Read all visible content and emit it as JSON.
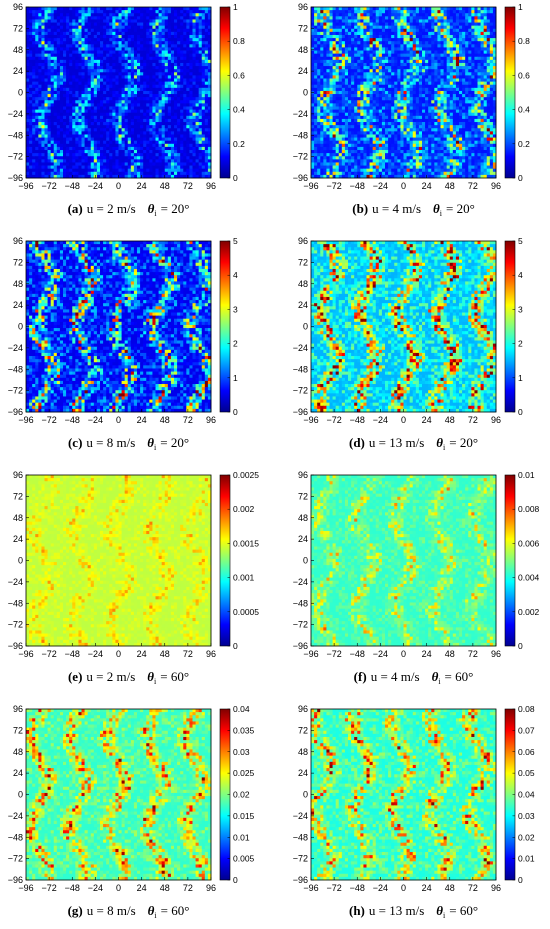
{
  "colors": {
    "colormap": [
      "#00008f",
      "#0000ff",
      "#0080ff",
      "#00ffff",
      "#80ff80",
      "#ffff00",
      "#ff8000",
      "#ff0000",
      "#800000"
    ]
  },
  "chart_data": [
    {
      "type": "heatmap",
      "panel": "a",
      "caption": "u = 2 m/s",
      "theta": "θ",
      "theta_sub": "i",
      "theta_value": "= 20°",
      "xticks": [
        "−96",
        "−72",
        "−48",
        "−24",
        "0",
        "24",
        "48",
        "72",
        "96"
      ],
      "yticks": [
        "96",
        "72",
        "48",
        "24",
        "0",
        "−24",
        "−48",
        "−72",
        "−96"
      ],
      "xlim": [
        -96,
        96
      ],
      "ylim": [
        -96,
        96
      ],
      "colorbar": {
        "range": [
          0,
          1
        ],
        "ticks": [
          "1",
          "0.8",
          "0.6",
          "0.4",
          "0.2",
          "0"
        ]
      },
      "texture": {
        "base": 0.08,
        "amp": 0.25,
        "streak": 0.3
      }
    },
    {
      "type": "heatmap",
      "panel": "b",
      "caption": "u = 4 m/s",
      "theta": "θ",
      "theta_sub": "i",
      "theta_value": "= 20°",
      "xticks": [
        "−96",
        "−72",
        "−48",
        "−24",
        "0",
        "24",
        "48",
        "72",
        "96"
      ],
      "yticks": [
        "96",
        "72",
        "48",
        "24",
        "0",
        "−24",
        "−48",
        "−72",
        "−96"
      ],
      "xlim": [
        -96,
        96
      ],
      "ylim": [
        -96,
        96
      ],
      "colorbar": {
        "range": [
          0,
          1
        ],
        "ticks": [
          "1",
          "0.8",
          "0.6",
          "0.4",
          "0.2",
          "0"
        ]
      },
      "texture": {
        "base": 0.14,
        "amp": 0.5,
        "streak": 0.35
      }
    },
    {
      "type": "heatmap",
      "panel": "c",
      "caption": "u = 8 m/s",
      "theta": "θ",
      "theta_sub": "i",
      "theta_value": "= 20°",
      "xticks": [
        "−96",
        "−72",
        "−48",
        "−24",
        "0",
        "24",
        "48",
        "72",
        "96"
      ],
      "yticks": [
        "96",
        "72",
        "48",
        "24",
        "0",
        "−24",
        "−48",
        "−72",
        "−96"
      ],
      "xlim": [
        -96,
        96
      ],
      "ylim": [
        -96,
        96
      ],
      "colorbar": {
        "range": [
          0,
          5
        ],
        "ticks": [
          "5",
          "4",
          "3",
          "2",
          "1",
          "0"
        ]
      },
      "texture": {
        "base": 0.1,
        "amp": 0.55,
        "streak": 0.4
      }
    },
    {
      "type": "heatmap",
      "panel": "d",
      "caption": "u = 13 m/s",
      "theta": "θ",
      "theta_sub": "i",
      "theta_value": "= 20°",
      "xticks": [
        "−96",
        "−72",
        "−48",
        "−24",
        "0",
        "24",
        "48",
        "72",
        "96"
      ],
      "yticks": [
        "96",
        "72",
        "48",
        "24",
        "0",
        "−24",
        "−48",
        "−72",
        "−96"
      ],
      "xlim": [
        -96,
        96
      ],
      "ylim": [
        -96,
        96
      ],
      "colorbar": {
        "range": [
          0,
          5
        ],
        "ticks": [
          "5",
          "4",
          "3",
          "2",
          "1",
          "0"
        ]
      },
      "texture": {
        "base": 0.3,
        "amp": 0.5,
        "streak": 0.45
      }
    },
    {
      "type": "heatmap",
      "panel": "e",
      "caption": "u = 2 m/s",
      "theta": "θ",
      "theta_sub": "i",
      "theta_value": "= 60°",
      "xticks": [
        "−96",
        "−72",
        "−48",
        "−24",
        "0",
        "24",
        "48",
        "72",
        "96"
      ],
      "yticks": [
        "96",
        "72",
        "48",
        "24",
        "0",
        "−24",
        "−48",
        "−72",
        "−96"
      ],
      "xlim": [
        -96,
        96
      ],
      "ylim": [
        -96,
        96
      ],
      "colorbar": {
        "range": [
          0,
          0.0025
        ],
        "ticks": [
          "0.0025",
          "0.002",
          "0.0015",
          "0.001",
          "0.0005",
          "0"
        ]
      },
      "texture": {
        "base": 0.56,
        "amp": 0.12,
        "streak": 0.05
      }
    },
    {
      "type": "heatmap",
      "panel": "f",
      "caption": "u = 4 m/s",
      "theta": "θ",
      "theta_sub": "i",
      "theta_value": "= 60°",
      "xticks": [
        "−96",
        "−72",
        "−48",
        "−24",
        "0",
        "24",
        "48",
        "72",
        "96"
      ],
      "yticks": [
        "96",
        "72",
        "48",
        "24",
        "0",
        "−24",
        "−48",
        "−72",
        "−96"
      ],
      "xlim": [
        -96,
        96
      ],
      "ylim": [
        -96,
        96
      ],
      "colorbar": {
        "range": [
          0,
          0.01
        ],
        "ticks": [
          "0.01",
          "0.008",
          "0.006",
          "0.004",
          "0.002",
          "0"
        ]
      },
      "texture": {
        "base": 0.42,
        "amp": 0.2,
        "streak": 0.12
      }
    },
    {
      "type": "heatmap",
      "panel": "g",
      "caption": "u = 8 m/s",
      "theta": "θ",
      "theta_sub": "i",
      "theta_value": "= 60°",
      "xticks": [
        "−96",
        "−72",
        "−48",
        "−24",
        "0",
        "24",
        "48",
        "72",
        "96"
      ],
      "yticks": [
        "96",
        "72",
        "48",
        "24",
        "0",
        "−24",
        "−48",
        "−72",
        "−96"
      ],
      "xlim": [
        -96,
        96
      ],
      "ylim": [
        -96,
        96
      ],
      "colorbar": {
        "range": [
          0,
          0.04
        ],
        "ticks": [
          "0.04",
          "0.035",
          "0.03",
          "0.025",
          "0.02",
          "0.015",
          "0.01",
          "0.005",
          "0"
        ]
      },
      "texture": {
        "base": 0.42,
        "amp": 0.3,
        "streak": 0.3
      }
    },
    {
      "type": "heatmap",
      "panel": "h",
      "caption": "u = 13 m/s",
      "theta": "θ",
      "theta_sub": "i",
      "theta_value": "= 60°",
      "xticks": [
        "−96",
        "−72",
        "−48",
        "−24",
        "0",
        "24",
        "48",
        "72",
        "96"
      ],
      "yticks": [
        "96",
        "72",
        "48",
        "24",
        "0",
        "−24",
        "−48",
        "−72",
        "−96"
      ],
      "xlim": [
        -96,
        96
      ],
      "ylim": [
        -96,
        96
      ],
      "colorbar": {
        "range": [
          0,
          0.08
        ],
        "ticks": [
          "0.08",
          "0.07",
          "0.06",
          "0.05",
          "0.04",
          "0.03",
          "0.02",
          "0.01",
          "0"
        ]
      },
      "texture": {
        "base": 0.4,
        "amp": 0.32,
        "streak": 0.3
      }
    }
  ]
}
